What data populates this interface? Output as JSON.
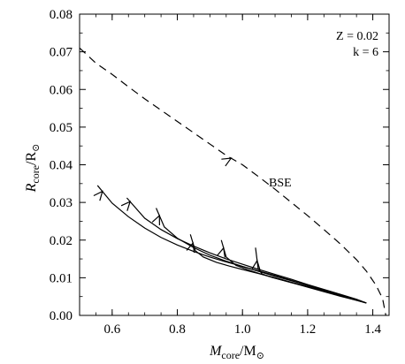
{
  "chart_data": {
    "type": "line",
    "xlim": [
      0.5,
      1.45
    ],
    "ylim": [
      0.0,
      0.08
    ],
    "x_ticks": [
      0.6,
      0.8,
      1.0,
      1.2,
      1.4
    ],
    "x_tick_labels": [
      "0.6",
      "0.8",
      "1.0",
      "1.2",
      "1.4"
    ],
    "y_ticks": [
      0.0,
      0.01,
      0.02,
      0.03,
      0.04,
      0.05,
      0.06,
      0.07,
      0.08
    ],
    "y_tick_labels": [
      "0.00",
      "0.01",
      "0.02",
      "0.03",
      "0.04",
      "0.05",
      "0.06",
      "0.07",
      "0.08"
    ],
    "xlabel": {
      "main": "M",
      "sub": "core",
      "unit": "/M",
      "unit_sub": "⊙"
    },
    "ylabel": {
      "main": "R",
      "sub": "core",
      "unit": "/R",
      "unit_sub": "⊙"
    },
    "annotations": {
      "metallicity": "Z = 0.02",
      "k": "k = 6",
      "bse": "BSE"
    },
    "grid": false,
    "series": [
      {
        "name": "BSE",
        "style": "dashed",
        "x": [
          0.5,
          0.55,
          0.6,
          0.65,
          0.7,
          0.75,
          0.8,
          0.85,
          0.9,
          0.95,
          1.0,
          1.05,
          1.1,
          1.15,
          1.2,
          1.25,
          1.3,
          1.35,
          1.38,
          1.41,
          1.43,
          1.44
        ],
        "y": [
          0.071,
          0.067,
          0.064,
          0.0607,
          0.0575,
          0.0545,
          0.0515,
          0.0485,
          0.0455,
          0.0425,
          0.04,
          0.0368,
          0.0335,
          0.03,
          0.0265,
          0.0228,
          0.019,
          0.0148,
          0.0118,
          0.008,
          0.0045,
          0.0
        ],
        "arrow_at": 0.965
      },
      {
        "style": "solid",
        "x": [
          0.555,
          0.6,
          0.65,
          0.7,
          0.75,
          0.8,
          0.85,
          0.9,
          0.95,
          1.0,
          1.05,
          1.1,
          1.15,
          1.2,
          1.25,
          1.3,
          1.35,
          1.38
        ],
        "y": [
          0.0345,
          0.0298,
          0.0262,
          0.0232,
          0.0207,
          0.0187,
          0.017,
          0.0155,
          0.0142,
          0.013,
          0.0118,
          0.0106,
          0.0093,
          0.008,
          0.0068,
          0.0055,
          0.0042,
          0.0033
        ],
        "arrow_at": 0.57
      },
      {
        "style": "solid",
        "x": [
          0.645,
          0.7,
          0.75,
          0.8,
          0.85,
          0.9,
          0.95,
          1.0,
          1.05,
          1.1,
          1.15,
          1.2,
          1.25,
          1.3,
          1.35,
          1.38
        ],
        "y": [
          0.0312,
          0.0258,
          0.0228,
          0.0204,
          0.0184,
          0.0166,
          0.015,
          0.0136,
          0.0122,
          0.0109,
          0.0096,
          0.0082,
          0.0069,
          0.0056,
          0.0043,
          0.0033
        ],
        "arrow_at": 0.655
      },
      {
        "style": "solid",
        "x": [
          0.735,
          0.76,
          0.8,
          0.85,
          0.9,
          0.95,
          1.0,
          1.05,
          1.1,
          1.15,
          1.2,
          1.25,
          1.3,
          1.35,
          1.38
        ],
        "y": [
          0.0285,
          0.0235,
          0.0205,
          0.018,
          0.016,
          0.0144,
          0.013,
          0.0117,
          0.0104,
          0.0092,
          0.008,
          0.0067,
          0.0054,
          0.0042,
          0.0033
        ],
        "arrow_at": 0.745
      },
      {
        "style": "solid",
        "x": [
          0.84,
          0.855,
          0.88,
          0.92,
          0.96,
          1.0,
          1.05,
          1.1,
          1.15,
          1.2,
          1.25,
          1.3,
          1.35,
          1.38
        ],
        "y": [
          0.0215,
          0.0172,
          0.0155,
          0.0141,
          0.0131,
          0.0122,
          0.0111,
          0.01,
          0.0088,
          0.0077,
          0.0065,
          0.0053,
          0.0041,
          0.0033
        ],
        "arrow_at": 0.848
      },
      {
        "style": "solid",
        "x": [
          0.935,
          0.95,
          0.98,
          1.02,
          1.06,
          1.1,
          1.15,
          1.2,
          1.25,
          1.3,
          1.35,
          1.38
        ],
        "y": [
          0.02,
          0.0155,
          0.0133,
          0.012,
          0.0109,
          0.0099,
          0.0087,
          0.0076,
          0.0064,
          0.0052,
          0.004,
          0.0033
        ],
        "arrow_at": 0.942
      },
      {
        "style": "solid",
        "x": [
          1.04,
          1.048,
          1.06,
          1.09,
          1.12,
          1.16,
          1.2,
          1.25,
          1.3,
          1.35,
          1.38
        ],
        "y": [
          0.018,
          0.0125,
          0.011,
          0.0101,
          0.0094,
          0.0085,
          0.0075,
          0.0063,
          0.0051,
          0.004,
          0.0033
        ],
        "arrow_at": 1.045
      }
    ]
  }
}
